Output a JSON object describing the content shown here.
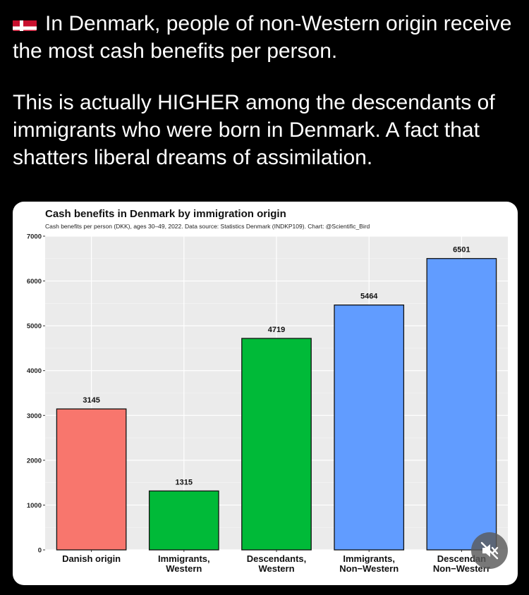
{
  "post": {
    "flag_icon": "denmark-flag-icon",
    "line1": "In Denmark, people of non-Western origin receive the most cash benefits per person.",
    "line2": "This is actually HIGHER among the descendants of immigrants who were born in Denmark. A fact that shatters liberal dreams of assimilation."
  },
  "colors": {
    "danish": "#F8766D",
    "western": "#00BA38",
    "nonwestern": "#619CFF",
    "panel": "#EBEBEB"
  },
  "mute_icon": "muted-speaker-icon",
  "chart_data": {
    "type": "bar",
    "title": "Cash benefits in Denmark by immigration origin",
    "subtitle": "Cash benefits per person (DKK), ages 30–49, 2022. Data source: Statistics Denmark (INDKP109).  Chart: @Scientific_Bird",
    "xlabel": "",
    "ylabel": "",
    "ylim": [
      0,
      7000
    ],
    "yticks": [
      "0",
      "1000",
      "2000",
      "3000",
      "4000",
      "5000",
      "6000",
      "7000"
    ],
    "categories": [
      [
        "Danish origin"
      ],
      [
        "Immigrants,",
        "Western"
      ],
      [
        "Descendants,",
        "Western"
      ],
      [
        "Immigrants,",
        "Non−Western"
      ],
      [
        "Descendan",
        "Non−Westerr"
      ]
    ],
    "values": [
      3145,
      1315,
      4719,
      5464,
      6501
    ],
    "value_labels": [
      "3145",
      "1315",
      "4719",
      "5464",
      "6501"
    ],
    "bar_colors": [
      "#F8766D",
      "#00BA38",
      "#00BA38",
      "#619CFF",
      "#619CFF"
    ],
    "grid": true,
    "legend": "none"
  }
}
